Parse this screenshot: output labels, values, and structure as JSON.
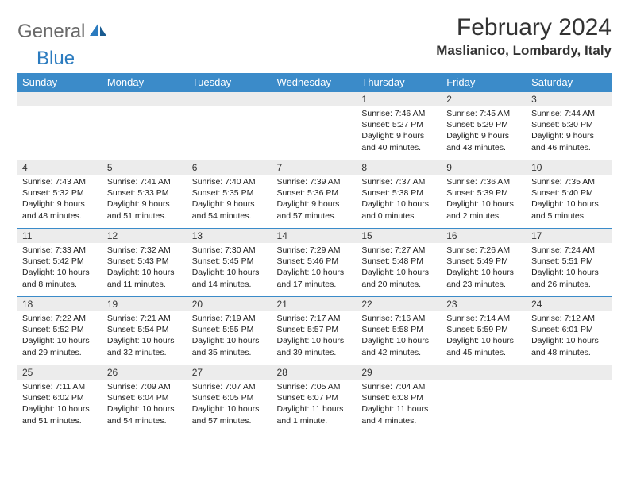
{
  "logo": {
    "text1": "General",
    "text2": "Blue",
    "icon_colors": [
      "#2b7bbf",
      "#1a5b90"
    ]
  },
  "title": "February 2024",
  "location": "Maslianico, Lombardy, Italy",
  "header_bg": "#3b8bc9",
  "daynum_bg": "#ececec",
  "border_color": "#3b8bc9",
  "days_of_week": [
    "Sunday",
    "Monday",
    "Tuesday",
    "Wednesday",
    "Thursday",
    "Friday",
    "Saturday"
  ],
  "weeks": [
    [
      null,
      null,
      null,
      null,
      {
        "n": "1",
        "sunrise": "7:46 AM",
        "sunset": "5:27 PM",
        "daylight": "9 hours and 40 minutes."
      },
      {
        "n": "2",
        "sunrise": "7:45 AM",
        "sunset": "5:29 PM",
        "daylight": "9 hours and 43 minutes."
      },
      {
        "n": "3",
        "sunrise": "7:44 AM",
        "sunset": "5:30 PM",
        "daylight": "9 hours and 46 minutes."
      }
    ],
    [
      {
        "n": "4",
        "sunrise": "7:43 AM",
        "sunset": "5:32 PM",
        "daylight": "9 hours and 48 minutes."
      },
      {
        "n": "5",
        "sunrise": "7:41 AM",
        "sunset": "5:33 PM",
        "daylight": "9 hours and 51 minutes."
      },
      {
        "n": "6",
        "sunrise": "7:40 AM",
        "sunset": "5:35 PM",
        "daylight": "9 hours and 54 minutes."
      },
      {
        "n": "7",
        "sunrise": "7:39 AM",
        "sunset": "5:36 PM",
        "daylight": "9 hours and 57 minutes."
      },
      {
        "n": "8",
        "sunrise": "7:37 AM",
        "sunset": "5:38 PM",
        "daylight": "10 hours and 0 minutes."
      },
      {
        "n": "9",
        "sunrise": "7:36 AM",
        "sunset": "5:39 PM",
        "daylight": "10 hours and 2 minutes."
      },
      {
        "n": "10",
        "sunrise": "7:35 AM",
        "sunset": "5:40 PM",
        "daylight": "10 hours and 5 minutes."
      }
    ],
    [
      {
        "n": "11",
        "sunrise": "7:33 AM",
        "sunset": "5:42 PM",
        "daylight": "10 hours and 8 minutes."
      },
      {
        "n": "12",
        "sunrise": "7:32 AM",
        "sunset": "5:43 PM",
        "daylight": "10 hours and 11 minutes."
      },
      {
        "n": "13",
        "sunrise": "7:30 AM",
        "sunset": "5:45 PM",
        "daylight": "10 hours and 14 minutes."
      },
      {
        "n": "14",
        "sunrise": "7:29 AM",
        "sunset": "5:46 PM",
        "daylight": "10 hours and 17 minutes."
      },
      {
        "n": "15",
        "sunrise": "7:27 AM",
        "sunset": "5:48 PM",
        "daylight": "10 hours and 20 minutes."
      },
      {
        "n": "16",
        "sunrise": "7:26 AM",
        "sunset": "5:49 PM",
        "daylight": "10 hours and 23 minutes."
      },
      {
        "n": "17",
        "sunrise": "7:24 AM",
        "sunset": "5:51 PM",
        "daylight": "10 hours and 26 minutes."
      }
    ],
    [
      {
        "n": "18",
        "sunrise": "7:22 AM",
        "sunset": "5:52 PM",
        "daylight": "10 hours and 29 minutes."
      },
      {
        "n": "19",
        "sunrise": "7:21 AM",
        "sunset": "5:54 PM",
        "daylight": "10 hours and 32 minutes."
      },
      {
        "n": "20",
        "sunrise": "7:19 AM",
        "sunset": "5:55 PM",
        "daylight": "10 hours and 35 minutes."
      },
      {
        "n": "21",
        "sunrise": "7:17 AM",
        "sunset": "5:57 PM",
        "daylight": "10 hours and 39 minutes."
      },
      {
        "n": "22",
        "sunrise": "7:16 AM",
        "sunset": "5:58 PM",
        "daylight": "10 hours and 42 minutes."
      },
      {
        "n": "23",
        "sunrise": "7:14 AM",
        "sunset": "5:59 PM",
        "daylight": "10 hours and 45 minutes."
      },
      {
        "n": "24",
        "sunrise": "7:12 AM",
        "sunset": "6:01 PM",
        "daylight": "10 hours and 48 minutes."
      }
    ],
    [
      {
        "n": "25",
        "sunrise": "7:11 AM",
        "sunset": "6:02 PM",
        "daylight": "10 hours and 51 minutes."
      },
      {
        "n": "26",
        "sunrise": "7:09 AM",
        "sunset": "6:04 PM",
        "daylight": "10 hours and 54 minutes."
      },
      {
        "n": "27",
        "sunrise": "7:07 AM",
        "sunset": "6:05 PM",
        "daylight": "10 hours and 57 minutes."
      },
      {
        "n": "28",
        "sunrise": "7:05 AM",
        "sunset": "6:07 PM",
        "daylight": "11 hours and 1 minute."
      },
      {
        "n": "29",
        "sunrise": "7:04 AM",
        "sunset": "6:08 PM",
        "daylight": "11 hours and 4 minutes."
      },
      null,
      null
    ]
  ],
  "labels": {
    "sunrise": "Sunrise: ",
    "sunset": "Sunset: ",
    "daylight": "Daylight: "
  }
}
